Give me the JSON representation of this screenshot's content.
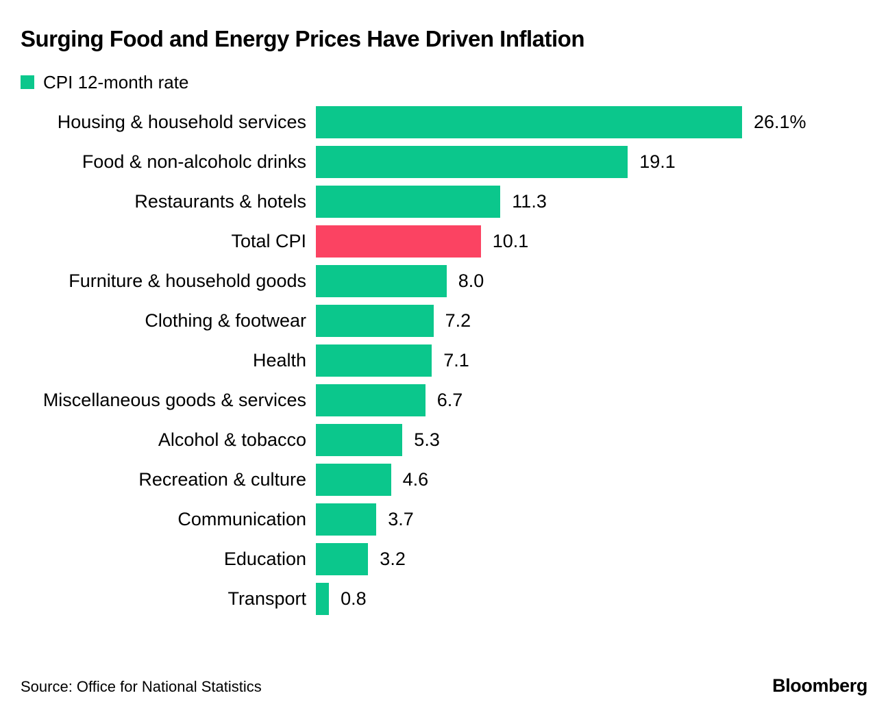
{
  "title": "Surging Food and Energy Prices Have Driven Inflation",
  "legend": {
    "label": "CPI 12-month rate"
  },
  "source": "Source: Office for National Statistics",
  "brand": "Bloomberg",
  "colors": {
    "accent_green": "#0bc78c",
    "highlight_red": "#fb4362",
    "text": "#000000",
    "background": "#ffffff"
  },
  "chart_data": {
    "type": "bar",
    "orientation": "horizontal",
    "title": "Surging Food and Energy Prices Have Driven Inflation",
    "legend_label": "CPI 12-month rate",
    "legend_position": "top-left",
    "grid": false,
    "xlim": [
      0,
      26.1
    ],
    "categories": [
      "Housing & household services",
      "Food & non-alcoholc drinks",
      "Restaurants & hotels",
      "Total CPI",
      "Furniture & household goods",
      "Clothing & footwear",
      "Health",
      "Miscellaneous goods & services",
      "Alcohol & tobacco",
      "Recreation & culture",
      "Communication",
      "Education",
      "Transport"
    ],
    "values": [
      26.1,
      19.1,
      11.3,
      10.1,
      8.0,
      7.2,
      7.1,
      6.7,
      5.3,
      4.6,
      3.7,
      3.2,
      0.8
    ],
    "value_labels": [
      "26.1%",
      "19.1",
      "11.3",
      "10.1",
      "8.0",
      "7.2",
      "7.1",
      "6.7",
      "5.3",
      "4.6",
      "3.7",
      "3.2",
      "0.8"
    ],
    "highlight_index": 3,
    "highlight_category": "Total CPI"
  }
}
